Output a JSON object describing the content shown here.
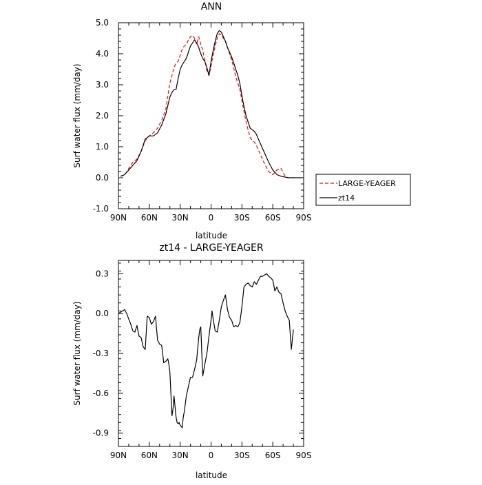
{
  "chart_data": [
    {
      "type": "line",
      "title": "ANN",
      "xlabel": "latitude",
      "ylabel": "Surf water flux (mm/day)",
      "xlim": [
        90,
        -90
      ],
      "ylim": [
        -1.0,
        5.0
      ],
      "x_ticks": [
        90,
        60,
        30,
        0,
        -30,
        -60,
        -90
      ],
      "x_tick_labels": [
        "90N",
        "60N",
        "30N",
        "0",
        "30S",
        "60S",
        "90S"
      ],
      "y_ticks": [
        -1.0,
        0.0,
        1.0,
        2.0,
        3.0,
        4.0,
        5.0
      ],
      "y_tick_labels": [
        "-1.0",
        "0.0",
        "1.0",
        "2.0",
        "3.0",
        "4.0",
        "5.0"
      ],
      "legend_position": "right",
      "series": [
        {
          "name": "LARGE-YEAGER",
          "color": "#ff0000",
          "dash": "dashed",
          "x": [
            88,
            84,
            80,
            76,
            72,
            68,
            64,
            60,
            56,
            52,
            48,
            44,
            40,
            38,
            36,
            34,
            32,
            30,
            28,
            26,
            24,
            22,
            20,
            18,
            16,
            14,
            12,
            10,
            8,
            6,
            4,
            2,
            0,
            -2,
            -4,
            -6,
            -8,
            -10,
            -12,
            -14,
            -16,
            -18,
            -20,
            -22,
            -24,
            -26,
            -28,
            -30,
            -32,
            -34,
            -36,
            -38,
            -40,
            -42,
            -44,
            -46,
            -48,
            -50,
            -52,
            -56,
            -60,
            -64,
            -68,
            -72,
            -75,
            -78,
            -80
          ],
          "y": [
            0.05,
            0.08,
            0.3,
            0.5,
            0.6,
            0.85,
            1.2,
            1.35,
            1.45,
            1.6,
            1.85,
            2.2,
            3.05,
            3.3,
            3.55,
            3.7,
            3.75,
            3.95,
            4.15,
            4.25,
            4.3,
            4.45,
            4.55,
            4.6,
            4.5,
            4.3,
            4.55,
            4.3,
            4.1,
            3.8,
            3.45,
            3.3,
            3.6,
            3.95,
            4.25,
            4.5,
            4.65,
            4.6,
            4.5,
            4.4,
            4.2,
            4.0,
            3.8,
            3.55,
            3.25,
            3.05,
            2.85,
            2.5,
            2.15,
            1.8,
            1.55,
            1.3,
            1.2,
            1.15,
            1.05,
            0.9,
            0.75,
            0.6,
            0.45,
            0.2,
            0.1,
            0.25,
            0.3,
            0.05,
            0.0,
            0.0,
            0.0
          ]
        },
        {
          "name": "zt14",
          "color": "#000000",
          "dash": "solid",
          "x": [
            88,
            84,
            80,
            76,
            72,
            68,
            64,
            60,
            56,
            52,
            48,
            44,
            40,
            38,
            36,
            34,
            32,
            30,
            28,
            26,
            24,
            22,
            20,
            18,
            16,
            14,
            12,
            10,
            8,
            6,
            4,
            2,
            0,
            -2,
            -4,
            -6,
            -8,
            -10,
            -12,
            -14,
            -16,
            -18,
            -20,
            -22,
            -24,
            -26,
            -28,
            -30,
            -32,
            -34,
            -36,
            -38,
            -40,
            -42,
            -44,
            -46,
            -48,
            -50,
            -52,
            -56,
            -60,
            -64,
            -68,
            -72,
            -75,
            -78,
            -82,
            -86,
            -89
          ],
          "y": [
            0.05,
            0.1,
            0.25,
            0.4,
            0.55,
            0.85,
            1.25,
            1.35,
            1.35,
            1.45,
            1.7,
            2.05,
            2.6,
            2.75,
            2.85,
            2.85,
            3.2,
            3.5,
            3.65,
            3.75,
            3.85,
            4.05,
            4.25,
            4.35,
            4.45,
            4.35,
            4.2,
            4.0,
            3.85,
            3.75,
            3.55,
            3.3,
            3.75,
            4.1,
            4.4,
            4.65,
            4.75,
            4.7,
            4.55,
            4.4,
            4.2,
            4.05,
            3.9,
            3.7,
            3.5,
            3.3,
            3.05,
            2.65,
            2.3,
            2.0,
            1.8,
            1.6,
            1.55,
            1.5,
            1.4,
            1.25,
            1.1,
            0.95,
            0.8,
            0.5,
            0.25,
            0.1,
            0.05,
            0.02,
            0.0,
            0.0,
            0.0,
            0.0,
            0.0
          ]
        }
      ]
    },
    {
      "type": "line",
      "title": "zt14 - LARGE-YEAGER",
      "xlabel": "latitude",
      "ylabel": "Surf water flux (mm/day)",
      "xlim": [
        90,
        -90
      ],
      "ylim": [
        -1.0,
        0.4
      ],
      "x_ticks": [
        90,
        60,
        30,
        0,
        -30,
        -60,
        -90
      ],
      "x_tick_labels": [
        "90N",
        "60N",
        "30N",
        "0",
        "30S",
        "60S",
        "90S"
      ],
      "y_ticks": [
        -0.9,
        -0.6,
        -0.3,
        0.0,
        0.3
      ],
      "y_tick_labels": [
        "-0.9",
        "-0.6",
        "-0.3",
        "0.0",
        "0.3"
      ],
      "series": [
        {
          "name": "zt14",
          "color": "#000000",
          "dash": "solid",
          "x": [
            90,
            86,
            84,
            82,
            80,
            78,
            76,
            74,
            72,
            70,
            68,
            66,
            64,
            62,
            60,
            58,
            56,
            54,
            52,
            50,
            48,
            46,
            44,
            42,
            41,
            40,
            39,
            38,
            37,
            36,
            35,
            34,
            33,
            32,
            31,
            30,
            29,
            28,
            27,
            26,
            24,
            22,
            20,
            18,
            16,
            14,
            12,
            11,
            10,
            9,
            8,
            6,
            4,
            2,
            0,
            -1,
            -2,
            -4,
            -6,
            -8,
            -10,
            -12,
            -14,
            -16,
            -18,
            -20,
            -22,
            -24,
            -26,
            -28,
            -30,
            -32,
            -34,
            -36,
            -38,
            -40,
            -42,
            -44,
            -46,
            -48,
            -50,
            -52,
            -54,
            -56,
            -58,
            -60,
            -62,
            -64,
            -66,
            -68,
            -70,
            -72,
            -74,
            -76,
            -78,
            -80
          ],
          "y": [
            0.0,
            0.02,
            0.03,
            0.0,
            -0.04,
            -0.08,
            -0.13,
            -0.14,
            -0.09,
            -0.17,
            -0.18,
            -0.25,
            -0.27,
            -0.02,
            -0.03,
            -0.08,
            -0.06,
            -0.02,
            -0.2,
            -0.23,
            -0.24,
            -0.37,
            -0.36,
            -0.34,
            -0.38,
            -0.44,
            -0.6,
            -0.77,
            -0.72,
            -0.62,
            -0.7,
            -0.78,
            -0.82,
            -0.83,
            -0.82,
            -0.84,
            -0.85,
            -0.86,
            -0.78,
            -0.74,
            -0.62,
            -0.55,
            -0.48,
            -0.48,
            -0.42,
            -0.35,
            -0.18,
            -0.12,
            -0.1,
            -0.3,
            -0.47,
            -0.38,
            -0.3,
            -0.17,
            -0.05,
            0.02,
            -0.04,
            -0.13,
            -0.14,
            -0.05,
            0.05,
            0.1,
            0.14,
            0.03,
            -0.03,
            -0.05,
            -0.1,
            -0.09,
            -0.1,
            -0.07,
            0.05,
            0.2,
            0.22,
            0.23,
            0.21,
            0.2,
            0.24,
            0.22,
            0.25,
            0.28,
            0.28,
            0.29,
            0.3,
            0.28,
            0.27,
            0.25,
            0.17,
            0.2,
            0.16,
            0.15,
            0.08,
            0.02,
            -0.02,
            -0.05,
            -0.27,
            -0.12
          ]
        }
      ]
    }
  ]
}
